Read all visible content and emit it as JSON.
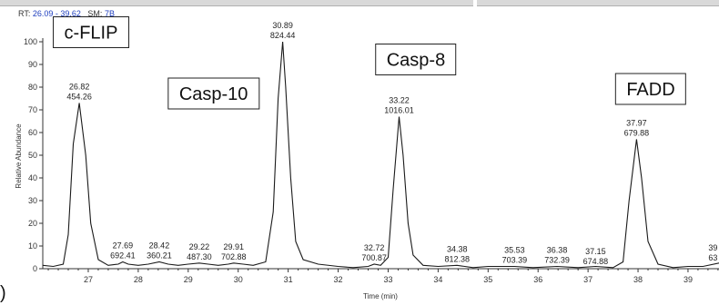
{
  "header": {
    "rt_label": "RT:",
    "rt_range": "26.09 - 39.62",
    "sm_label": "SM:",
    "sm_value": "7B"
  },
  "panel_letter": ")",
  "chart_data": {
    "type": "line",
    "xlabel": "Time (min)",
    "ylabel": "Relative Abundance",
    "xlim": [
      26.09,
      39.62
    ],
    "ylim": [
      0,
      100
    ],
    "x_ticks": [
      27,
      28,
      29,
      30,
      31,
      32,
      33,
      34,
      35,
      36,
      37,
      38,
      39
    ],
    "y_ticks": [
      0,
      10,
      20,
      30,
      40,
      50,
      60,
      70,
      80,
      90,
      100
    ],
    "series": [
      {
        "x": [
          26.09,
          26.3,
          26.5,
          26.6,
          26.7,
          26.82,
          26.95,
          27.05,
          27.2,
          27.4,
          27.6,
          27.69,
          27.8,
          28.0,
          28.2,
          28.42,
          28.6,
          28.8,
          29.0,
          29.22,
          29.4,
          29.6,
          29.8,
          29.91,
          30.1,
          30.3,
          30.55,
          30.7,
          30.8,
          30.89,
          30.95,
          31.05,
          31.15,
          31.3,
          31.6,
          32.0,
          32.3,
          32.6,
          32.72,
          32.85,
          33.0,
          33.1,
          33.22,
          33.3,
          33.4,
          33.5,
          33.7,
          34.0,
          34.38,
          34.7,
          35.0,
          35.53,
          35.9,
          36.38,
          36.8,
          37.15,
          37.5,
          37.7,
          37.82,
          37.97,
          38.07,
          38.2,
          38.4,
          38.7,
          39.0,
          39.3,
          39.62
        ],
        "y": [
          1.5,
          1,
          2,
          15,
          55,
          73,
          50,
          20,
          4,
          1.5,
          2,
          3,
          2,
          1.5,
          2,
          3,
          2,
          1.5,
          2,
          2.5,
          2,
          1.5,
          2,
          2.5,
          2,
          1.5,
          3,
          25,
          75,
          100,
          80,
          40,
          12,
          4,
          2,
          1,
          0.5,
          1,
          2,
          1.5,
          5,
          35,
          67,
          50,
          20,
          6,
          1.5,
          1,
          1.5,
          0.5,
          1,
          1,
          0.5,
          1,
          0.5,
          1,
          0.5,
          3,
          30,
          57,
          40,
          12,
          2,
          0.5,
          1,
          1,
          2.5
        ]
      }
    ],
    "peak_labels": [
      {
        "time": "26.82",
        "mass": "454.26",
        "x": 26.82,
        "y": 73
      },
      {
        "time": "27.69",
        "mass": "692.41",
        "x": 27.69,
        "y": 3
      },
      {
        "time": "28.42",
        "mass": "360.21",
        "x": 28.42,
        "y": 3
      },
      {
        "time": "29.22",
        "mass": "487.30",
        "x": 29.22,
        "y": 2.5
      },
      {
        "time": "29.91",
        "mass": "702.88",
        "x": 29.91,
        "y": 2.5
      },
      {
        "time": "30.89",
        "mass": "824.44",
        "x": 30.89,
        "y": 100
      },
      {
        "time": "32.72",
        "mass": "700.87",
        "x": 32.72,
        "y": 2
      },
      {
        "time": "33.22",
        "mass": "1016.01",
        "x": 33.22,
        "y": 67
      },
      {
        "time": "34.38",
        "mass": "812.38",
        "x": 34.38,
        "y": 1.5
      },
      {
        "time": "35.53",
        "mass": "703.39",
        "x": 35.53,
        "y": 1
      },
      {
        "time": "36.38",
        "mass": "732.39",
        "x": 36.38,
        "y": 1
      },
      {
        "time": "37.15",
        "mass": "674.88",
        "x": 37.15,
        "y": 0.5
      },
      {
        "time": "37.97",
        "mass": "679.88",
        "x": 37.97,
        "y": 57
      },
      {
        "time": "39",
        "mass": "63",
        "x": 39.5,
        "y": 2
      }
    ],
    "annotations": [
      {
        "text": "c-FLIP",
        "x": 26.3,
        "y": 111
      },
      {
        "text": "Casp-10",
        "x": 28.6,
        "y": 84
      },
      {
        "text": "Casp-8",
        "x": 32.75,
        "y": 99
      },
      {
        "text": "FADD",
        "x": 37.55,
        "y": 86
      }
    ]
  }
}
